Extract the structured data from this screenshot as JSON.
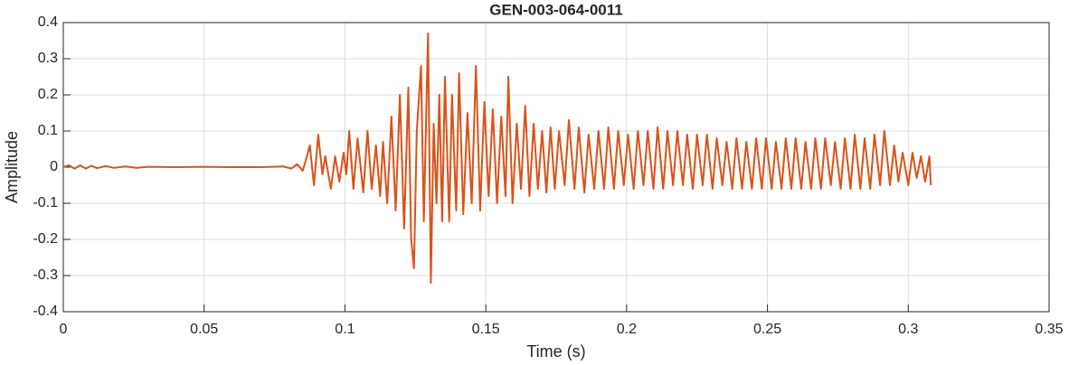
{
  "chart_data": {
    "type": "line",
    "title": "GEN-003-064-0011",
    "x_label": "Time (s)",
    "y_label": "Amplitude",
    "color": "#d95319",
    "grid": true,
    "xlim": [
      0,
      0.35
    ],
    "xticks": [
      0,
      0.05,
      0.1,
      0.15,
      0.2,
      0.25,
      0.3,
      0.35
    ],
    "ylim": [
      -0.4,
      0.4
    ],
    "yticks": [
      -0.4,
      -0.3,
      -0.2,
      -0.1,
      0,
      0.1,
      0.2,
      0.3,
      0.4
    ],
    "x": [
      0,
      0.002,
      0.004,
      0.006,
      0.008,
      0.01,
      0.012,
      0.015,
      0.018,
      0.022,
      0.026,
      0.03,
      0.04,
      0.05,
      0.06,
      0.07,
      0.078,
      0.081,
      0.083,
      0.085,
      0.0865,
      0.0875,
      0.089,
      0.0905,
      0.092,
      0.093,
      0.095,
      0.0965,
      0.098,
      0.0995,
      0.1005,
      0.1015,
      0.103,
      0.1045,
      0.1065,
      0.108,
      0.1095,
      0.111,
      0.1125,
      0.1135,
      0.115,
      0.1165,
      0.118,
      0.1195,
      0.121,
      0.1225,
      0.1235,
      0.1245,
      0.1255,
      0.127,
      0.128,
      0.129,
      0.1295,
      0.1305,
      0.1315,
      0.1325,
      0.1335,
      0.1345,
      0.1355,
      0.137,
      0.138,
      0.1395,
      0.1405,
      0.142,
      0.1435,
      0.145,
      0.1465,
      0.148,
      0.1495,
      0.151,
      0.1525,
      0.154,
      0.1555,
      0.157,
      0.158,
      0.1595,
      0.161,
      0.1625,
      0.164,
      0.1655,
      0.167,
      0.1685,
      0.17,
      0.1715,
      0.173,
      0.1745,
      0.176,
      0.178,
      0.1795,
      0.1815,
      0.183,
      0.185,
      0.1865,
      0.1885,
      0.19,
      0.192,
      0.1935,
      0.1955,
      0.197,
      0.199,
      0.2005,
      0.2025,
      0.204,
      0.206,
      0.2075,
      0.2095,
      0.211,
      0.213,
      0.2145,
      0.2165,
      0.218,
      0.22,
      0.2215,
      0.2235,
      0.225,
      0.227,
      0.2285,
      0.2305,
      0.232,
      0.234,
      0.2355,
      0.2375,
      0.239,
      0.241,
      0.2425,
      0.2445,
      0.246,
      0.248,
      0.2495,
      0.2515,
      0.253,
      0.255,
      0.2565,
      0.2585,
      0.26,
      0.262,
      0.2635,
      0.2655,
      0.267,
      0.269,
      0.2705,
      0.2725,
      0.274,
      0.276,
      0.2775,
      0.2795,
      0.281,
      0.283,
      0.2845,
      0.2865,
      0.288,
      0.29,
      0.2915,
      0.2935,
      0.295,
      0.2965,
      0.298,
      0.3,
      0.3015,
      0.303,
      0.3045,
      0.306,
      0.3075,
      0.308
    ],
    "values": [
      0,
      0.005,
      -0.004,
      0.005,
      -0.004,
      0.004,
      -0.003,
      0.003,
      -0.002,
      0.002,
      -0.002,
      0.001,
      0,
      0.001,
      0,
      0,
      0.002,
      -0.004,
      0.008,
      -0.01,
      0.03,
      0.06,
      -0.05,
      0.09,
      -0.02,
      0.03,
      -0.06,
      0.03,
      -0.04,
      0.04,
      -0.02,
      0.1,
      -0.06,
      0.08,
      -0.07,
      0.1,
      -0.06,
      0.06,
      -0.08,
      0.07,
      -0.1,
      0.14,
      -0.12,
      0.2,
      -0.17,
      0.22,
      -0.2,
      -0.28,
      0.1,
      0.28,
      -0.15,
      0.2,
      0.37,
      -0.32,
      0.12,
      -0.1,
      0.2,
      -0.15,
      0.25,
      -0.15,
      0.2,
      -0.12,
      0.26,
      -0.13,
      0.15,
      -0.1,
      0.28,
      -0.12,
      0.18,
      -0.08,
      0.16,
      -0.1,
      0.14,
      -0.08,
      0.25,
      -0.1,
      0.12,
      -0.06,
      0.17,
      -0.08,
      0.12,
      -0.06,
      0.1,
      -0.07,
      0.11,
      -0.06,
      0.1,
      -0.05,
      0.13,
      -0.06,
      0.11,
      -0.07,
      0.09,
      -0.06,
      0.1,
      -0.06,
      0.11,
      -0.06,
      0.1,
      -0.05,
      0.09,
      -0.06,
      0.1,
      -0.05,
      0.1,
      -0.06,
      0.11,
      -0.06,
      0.1,
      -0.05,
      0.1,
      -0.05,
      0.09,
      -0.06,
      0.09,
      -0.05,
      0.09,
      -0.06,
      0.08,
      -0.05,
      0.07,
      -0.06,
      0.08,
      -0.06,
      0.07,
      -0.06,
      0.08,
      -0.06,
      0.08,
      -0.06,
      0.07,
      -0.06,
      0.08,
      -0.06,
      0.08,
      -0.06,
      0.07,
      -0.06,
      0.08,
      -0.06,
      0.08,
      -0.05,
      0.07,
      -0.06,
      0.08,
      -0.06,
      0.09,
      -0.06,
      0.08,
      -0.06,
      0.09,
      -0.05,
      0.1,
      -0.05,
      0.06,
      -0.04,
      0.04,
      -0.05,
      0.04,
      -0.03,
      0.03,
      -0.04,
      0.03,
      -0.05
    ]
  }
}
